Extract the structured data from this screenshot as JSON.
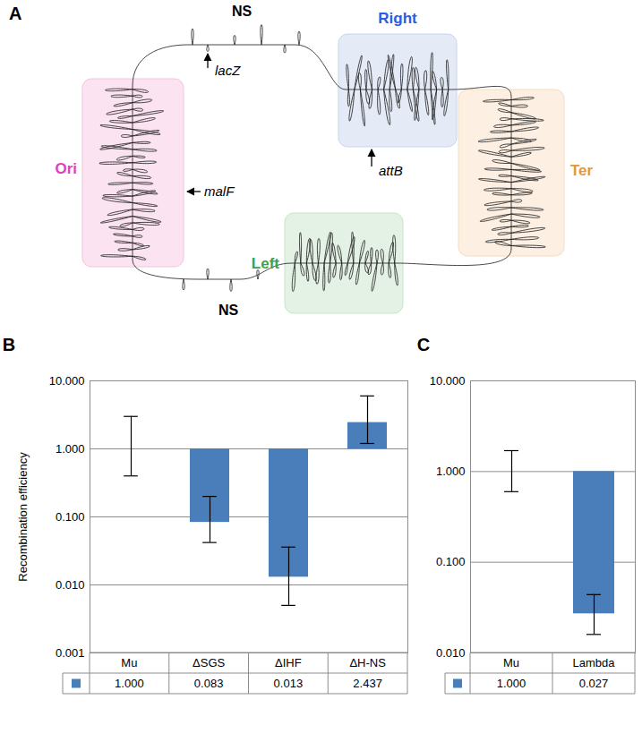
{
  "diagram": {
    "panel_label": "A",
    "domains": [
      {
        "name": "Ori",
        "color": "#e23fc0"
      },
      {
        "name": "Right",
        "color": "#2b5ce6"
      },
      {
        "name": "Ter",
        "color": "#e8953a"
      },
      {
        "name": "Left",
        "color": "#3aa34a"
      }
    ],
    "ns_labels": [
      "NS",
      "NS"
    ],
    "loci": [
      "lacZ",
      "attB",
      "malF"
    ]
  },
  "chart_data": [
    {
      "panel_label": "B",
      "type": "bar",
      "y_label": "Recombination efficiency",
      "categories": [
        "Mu",
        "ΔSGS",
        "ΔIHF",
        "ΔH-NS"
      ],
      "values": [
        1.0,
        0.083,
        0.013,
        2.437
      ],
      "value_labels": [
        "1.000",
        "0.083",
        "0.013",
        "2.437"
      ],
      "data_labels": true,
      "error_low": [
        0.4,
        0.042,
        0.005,
        1.2
      ],
      "error_high": [
        3.0,
        0.2,
        0.036,
        6.0
      ],
      "baseline": 1,
      "color": "#4a7ebb",
      "log": "y",
      "ylim": [
        0.001,
        10
      ],
      "yticks": [
        0.001,
        {
          "value": 0.01,
          "label": "0.010"
        },
        {
          "value": 0.1,
          "label": "0.100"
        },
        {
          "value": 1,
          "label": "1.000"
        },
        {
          "value": 10,
          "label": "10.000"
        }
      ],
      "grid": true
    },
    {
      "panel_label": "C",
      "type": "bar",
      "categories": [
        "Mu",
        "Lambda"
      ],
      "values": [
        1.0,
        0.027
      ],
      "value_labels": [
        "1.000",
        "0.027"
      ],
      "data_labels": true,
      "error_low": [
        0.6,
        0.016
      ],
      "error_high": [
        1.7,
        0.044
      ],
      "baseline": 1,
      "color": "#4a7ebb",
      "log": "y",
      "ylim": [
        0.01,
        10
      ],
      "yticks": [
        {
          "value": 0.01,
          "label": "0.010"
        },
        {
          "value": 0.1,
          "label": "0.100"
        },
        {
          "value": 1,
          "label": "1.000"
        },
        {
          "value": 10,
          "label": "10.000"
        }
      ],
      "grid": true
    }
  ]
}
